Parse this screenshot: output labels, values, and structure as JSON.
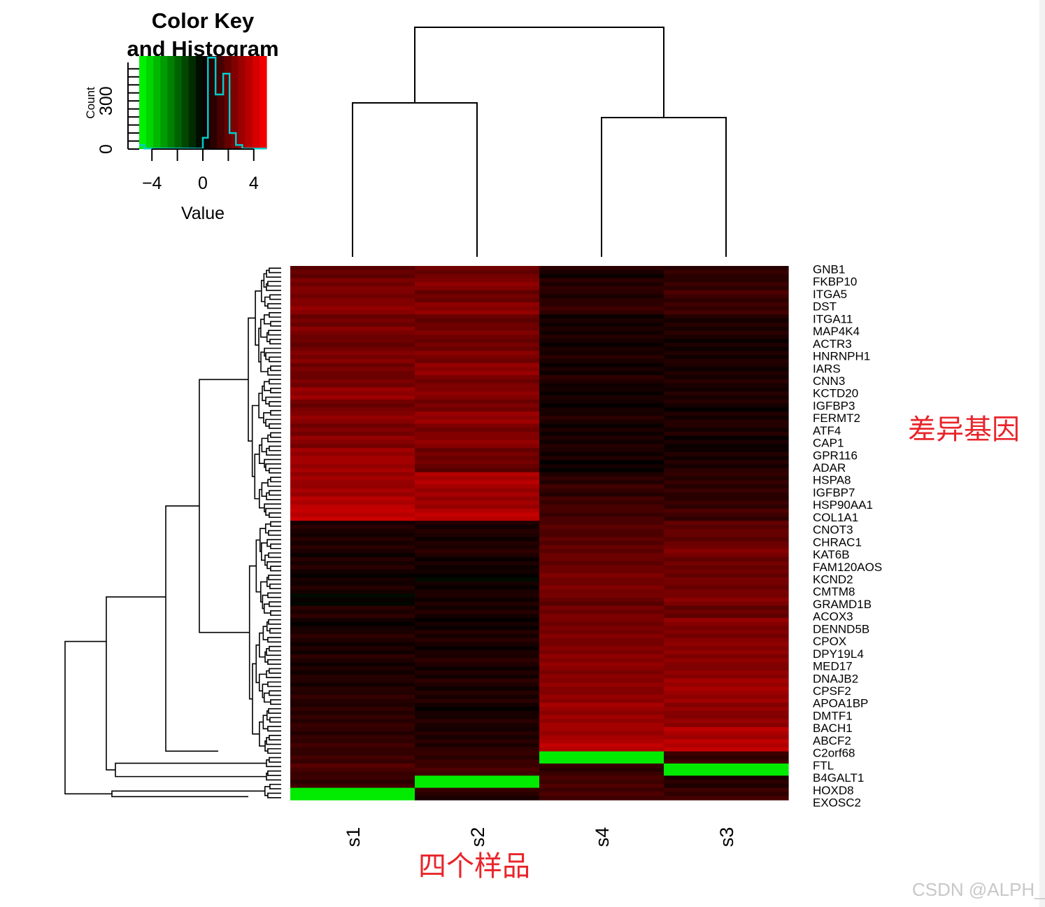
{
  "chart_data": {
    "type": "heatmap",
    "title": "",
    "key": {
      "title_line1": "Color Key",
      "title_line2": "and Histogram",
      "xlabel": "Value",
      "ylabel": "Count",
      "x_ticks": [
        "−4",
        "0",
        "4"
      ],
      "y_ticks": [
        "0",
        "300"
      ],
      "xlim": [
        -5,
        5
      ],
      "ylim": [
        0,
        580
      ],
      "colors": {
        "low": "#00ff00",
        "mid": "#000000",
        "high": "#ff0000",
        "hist_line": "#00cccc"
      },
      "histogram": [
        {
          "x": -5.0,
          "count": 25
        },
        {
          "x": -4.6,
          "count": 25
        },
        {
          "x": -4.6,
          "count": 3
        },
        {
          "x": 0.0,
          "count": 3
        },
        {
          "x": 0.0,
          "count": 70
        },
        {
          "x": 0.4,
          "count": 70
        },
        {
          "x": 0.4,
          "count": 570
        },
        {
          "x": 1.0,
          "count": 570
        },
        {
          "x": 1.0,
          "count": 340
        },
        {
          "x": 1.6,
          "count": 340
        },
        {
          "x": 1.6,
          "count": 470
        },
        {
          "x": 2.1,
          "count": 470
        },
        {
          "x": 2.1,
          "count": 100
        },
        {
          "x": 2.6,
          "count": 100
        },
        {
          "x": 2.6,
          "count": 25
        },
        {
          "x": 3.1,
          "count": 25
        },
        {
          "x": 3.1,
          "count": 3
        },
        {
          "x": 5.0,
          "count": 3
        }
      ]
    },
    "columns": [
      "s1",
      "s2",
      "s4",
      "s3"
    ],
    "row_labels": [
      "GNB1",
      "FKBP10",
      "ITGA5",
      "DST",
      "ITGA11",
      "MAP4K4",
      "ACTR3",
      "HNRNPH1",
      "IARS",
      "CNN3",
      "KCTD20",
      "IGFBP3",
      "FERMT2",
      "ATF4",
      "CAP1",
      "GPR116",
      "ADAR",
      "HSPA8",
      "IGFBP7",
      "HSP90AA1",
      "COL1A1",
      "CNOT3",
      "CHRAC1",
      "KAT6B",
      "FAM120AOS",
      "KCND2",
      "CMTM8",
      "GRAMD1B",
      "ACOX3",
      "DENND5B",
      "CPOX",
      "DPY19L4",
      "MED17",
      "DNAJB2",
      "CPSF2",
      "APOA1BP",
      "DMTF1",
      "BACH1",
      "ABCF2",
      "C2orf68",
      "FTL",
      "B4GALT1",
      "HOXD8",
      "EXOSC2"
    ],
    "values": [
      [
        2.0,
        2.2,
        0.5,
        0.8
      ],
      [
        2.2,
        2.6,
        0.7,
        1.0
      ],
      [
        2.4,
        2.2,
        0.8,
        1.2
      ],
      [
        2.6,
        2.6,
        1.0,
        1.1
      ],
      [
        2.2,
        2.0,
        0.5,
        0.7
      ],
      [
        2.4,
        2.2,
        0.4,
        0.6
      ],
      [
        2.0,
        2.2,
        0.4,
        0.5
      ],
      [
        2.6,
        2.4,
        0.5,
        0.4
      ],
      [
        2.2,
        2.8,
        0.4,
        0.5
      ],
      [
        2.4,
        2.4,
        0.6,
        0.5
      ],
      [
        2.8,
        2.6,
        0.3,
        0.6
      ],
      [
        2.2,
        2.4,
        0.4,
        0.4
      ],
      [
        2.6,
        2.8,
        0.6,
        0.5
      ],
      [
        2.4,
        2.4,
        0.5,
        0.7
      ],
      [
        2.6,
        2.6,
        0.4,
        0.3
      ],
      [
        3.0,
        2.2,
        0.5,
        0.6
      ],
      [
        3.2,
        2.0,
        0.1,
        0.5
      ],
      [
        3.0,
        3.4,
        0.8,
        0.9
      ],
      [
        3.2,
        3.2,
        1.0,
        0.8
      ],
      [
        3.4,
        3.0,
        1.2,
        1.0
      ],
      [
        3.8,
        3.8,
        1.4,
        1.2
      ],
      [
        0.5,
        0.4,
        1.6,
        1.8
      ],
      [
        0.6,
        0.5,
        1.8,
        2.0
      ],
      [
        0.5,
        0.6,
        1.8,
        2.4
      ],
      [
        0.6,
        0.4,
        2.0,
        2.2
      ],
      [
        0.4,
        0.1,
        2.2,
        2.0
      ],
      [
        0.5,
        0.3,
        2.4,
        2.2
      ],
      [
        0.1,
        0.6,
        2.0,
        2.4
      ],
      [
        0.6,
        0.5,
        2.2,
        2.0
      ],
      [
        0.3,
        0.4,
        2.4,
        2.6
      ],
      [
        0.6,
        0.5,
        2.4,
        2.4
      ],
      [
        0.5,
        0.4,
        2.6,
        2.8
      ],
      [
        0.6,
        0.6,
        2.6,
        2.6
      ],
      [
        0.5,
        0.5,
        2.6,
        2.8
      ],
      [
        0.7,
        0.6,
        2.6,
        3.0
      ],
      [
        0.8,
        0.6,
        2.8,
        3.0
      ],
      [
        0.9,
        0.4,
        3.0,
        2.6
      ],
      [
        0.8,
        0.6,
        3.0,
        2.8
      ],
      [
        0.9,
        0.7,
        3.2,
        3.4
      ],
      [
        1.0,
        0.6,
        3.6,
        3.6
      ],
      [
        1.2,
        1.0,
        -4.6,
        1.2
      ],
      [
        1.4,
        1.2,
        0.8,
        -4.6
      ],
      [
        1.0,
        -4.6,
        1.4,
        0.8
      ],
      [
        -4.6,
        0.8,
        1.2,
        1.0
      ]
    ],
    "col_dendrogram": [
      [
        0,
        1
      ],
      [
        2,
        3
      ],
      [
        [
          0,
          1
        ],
        [
          2,
          3
        ]
      ]
    ],
    "legend": "none",
    "grid": false
  },
  "annotations": {
    "genes": "差异基因",
    "samples": "四个样品"
  },
  "watermark": "CSDN @ALPH_"
}
